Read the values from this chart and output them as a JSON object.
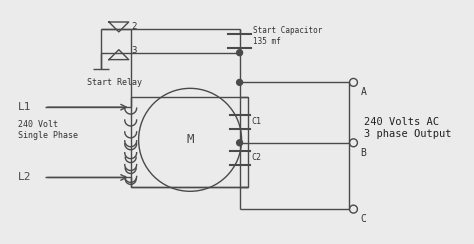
{
  "bg_color": "#ebebeb",
  "line_color": "#4a4a4a",
  "text_color": "#333333",
  "title_text": "240 Volts AC\n3 phase Output",
  "label_L1": "L1",
  "label_L2": "L2",
  "label_A": "A",
  "label_B": "B",
  "label_C": "C",
  "label_2": "2",
  "label_3": "3",
  "label_C1": "C1",
  "label_C2": "C2",
  "label_relay": "Start Relay",
  "label_cap": "Start Capacitor\n135 mf",
  "label_motor_top": "240 Volt\nSingle Phase",
  "label_M": "M"
}
